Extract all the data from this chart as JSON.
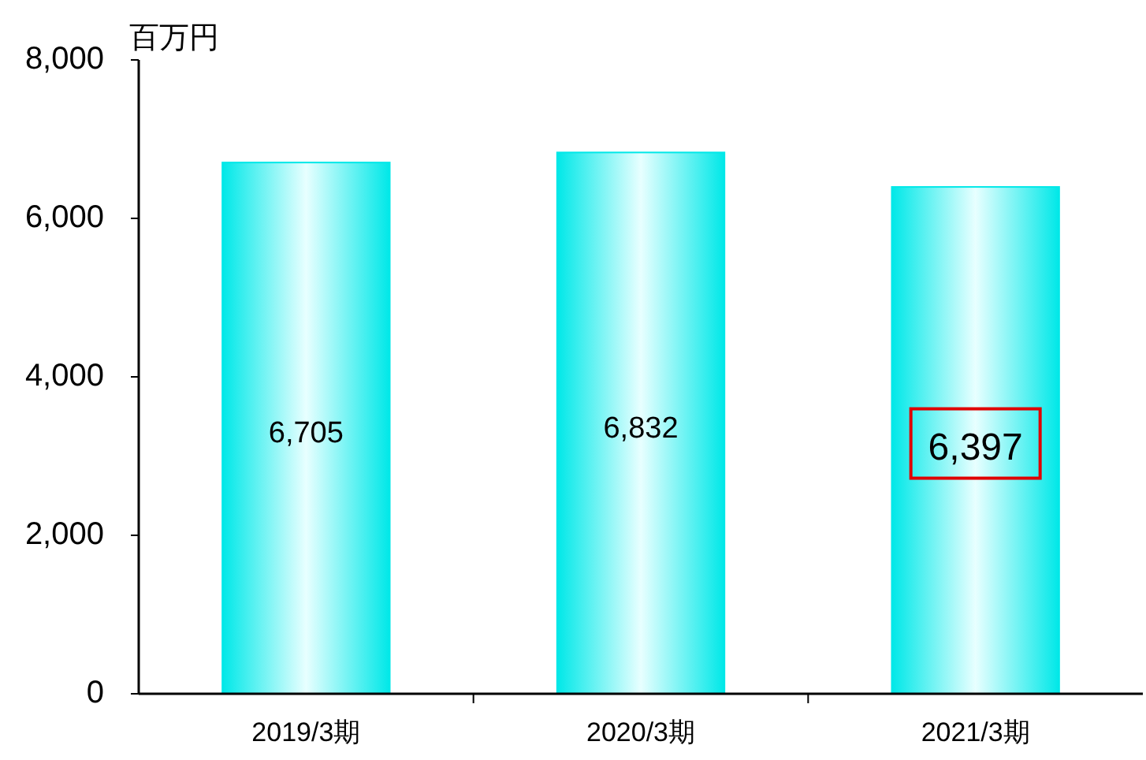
{
  "chart_data": {
    "type": "bar",
    "ylabel": "百万円",
    "categories": [
      "2019/3期",
      "2020/3期",
      "2021/3期"
    ],
    "values": [
      6705,
      6832,
      6397
    ],
    "color": "#00e8e8",
    "ylim": [
      0,
      8000
    ],
    "yticks": [
      {
        "value": 0,
        "label": "0"
      },
      {
        "value": 2000,
        "label": "2,000"
      },
      {
        "value": 4000,
        "label": "4,000"
      },
      {
        "value": 6000,
        "label": "6,000"
      },
      {
        "value": 8000,
        "label": "8,000"
      }
    ],
    "value_labels": [
      "6,705",
      "6,832",
      "6,397"
    ],
    "grid": false
  }
}
